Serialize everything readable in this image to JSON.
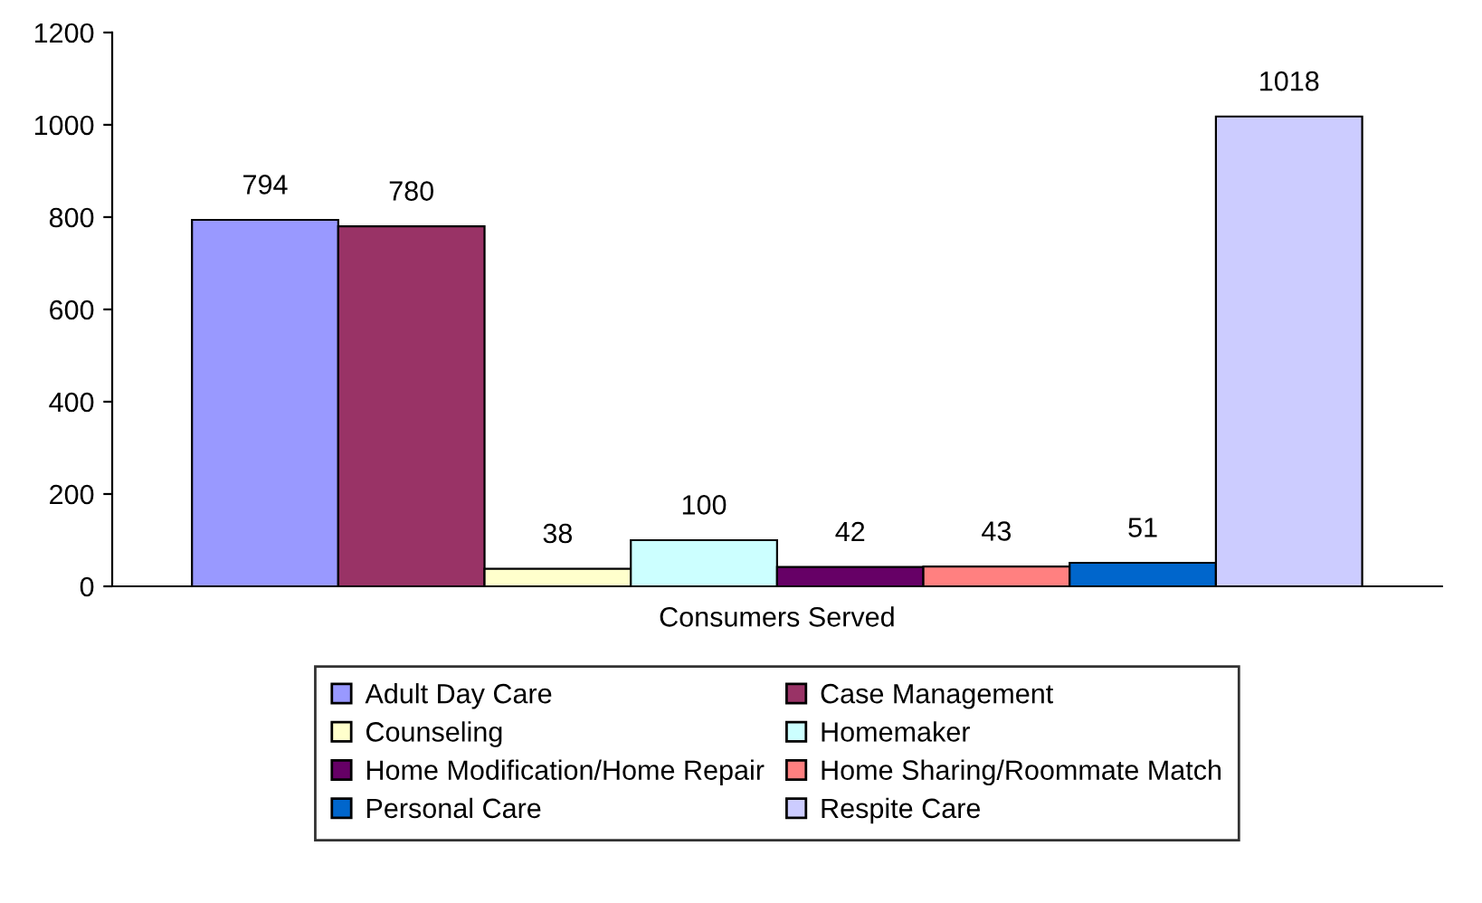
{
  "chart_data": {
    "type": "bar",
    "categories": [
      "Consumers Served"
    ],
    "series": [
      {
        "name": "Adult Day Care",
        "color": "#9999ff",
        "values": [
          794
        ]
      },
      {
        "name": "Case Management",
        "color": "#993366",
        "values": [
          780
        ]
      },
      {
        "name": "Counseling",
        "color": "#ffffcc",
        "values": [
          38
        ]
      },
      {
        "name": "Homemaker",
        "color": "#ccffff",
        "values": [
          100
        ]
      },
      {
        "name": "Home Modification/Home Repair",
        "color": "#660066",
        "values": [
          42
        ]
      },
      {
        "name": "Home Sharing/Roommate Match",
        "color": "#ff8080",
        "values": [
          43
        ]
      },
      {
        "name": "Personal Care",
        "color": "#0066cc",
        "values": [
          51
        ]
      },
      {
        "name": "Respite Care",
        "color": "#ccccff",
        "values": [
          1018
        ]
      }
    ],
    "ylim": [
      0,
      1200
    ],
    "yticks": [
      0,
      200,
      400,
      600,
      800,
      1000,
      1200
    ],
    "data_labels": true,
    "legend": "bottom",
    "grid": false
  }
}
